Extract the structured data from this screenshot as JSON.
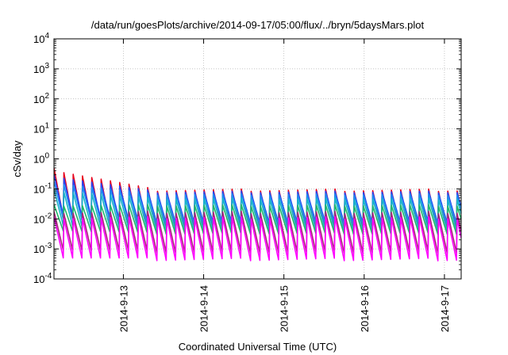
{
  "chart_data": {
    "type": "line",
    "title": "/data/run/goesPlots/archive/2014-09-17/05:00/flux/../bryn/5daysMars.plot",
    "xlabel": "Coordinated Universal Time (UTC)",
    "ylabel": "cSv/day",
    "y_scale": "log",
    "ylim": [
      0.0001,
      10000
    ],
    "y_ticks": [
      {
        "value": 0.0001,
        "base": "10",
        "exp": "-4"
      },
      {
        "value": 0.001,
        "base": "10",
        "exp": "-3"
      },
      {
        "value": 0.01,
        "base": "10",
        "exp": "-2"
      },
      {
        "value": 0.1,
        "base": "10",
        "exp": "-1"
      },
      {
        "value": 1,
        "base": "10",
        "exp": "0"
      },
      {
        "value": 10,
        "base": "10",
        "exp": "1"
      },
      {
        "value": 100,
        "base": "10",
        "exp": "2"
      },
      {
        "value": 1000,
        "base": "10",
        "exp": "3"
      },
      {
        "value": 10000,
        "base": "10",
        "exp": "4"
      }
    ],
    "xlim": [
      "2014-09-12T03:15",
      "2014-09-17T05:00"
    ],
    "x_ticks": [
      "2014-9-13",
      "2014-9-14",
      "2014-9-15",
      "2014-9-16",
      "2014-9-17"
    ],
    "grid": true,
    "sawtooth_period_hours": 2.8,
    "series": [
      {
        "color": "#e8001c",
        "peak": [
          0.5,
          0.1
        ],
        "trough": [
          0.012,
          0.004
        ]
      },
      {
        "color": "#2a43f0",
        "peak": [
          0.3,
          0.085
        ],
        "trough": [
          0.014,
          0.007
        ]
      },
      {
        "color": "#1e8cf0",
        "peak": [
          0.18,
          0.07
        ],
        "trough": [
          0.01,
          0.006
        ]
      },
      {
        "color": "#18b4c8",
        "peak": [
          0.1,
          0.05
        ],
        "trough": [
          0.006,
          0.004
        ]
      },
      {
        "color": "#22b86a",
        "peak": [
          0.03,
          0.03
        ],
        "trough": [
          0.004,
          0.003
        ]
      },
      {
        "color": "#a8247a",
        "peak": [
          0.018,
          0.018
        ],
        "trough": [
          0.0009,
          0.0007
        ]
      },
      {
        "color": "#ff00ff",
        "peak": [
          0.012,
          0.012
        ],
        "trough": [
          0.0005,
          0.0004
        ]
      }
    ]
  }
}
